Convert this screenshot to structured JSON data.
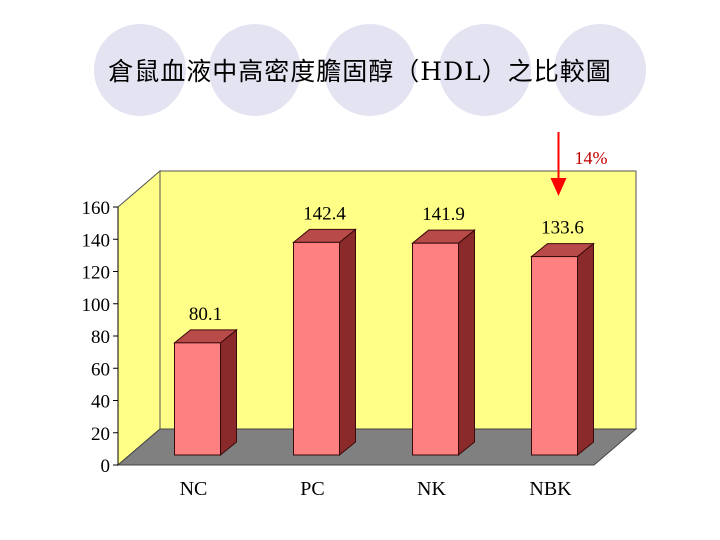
{
  "slide": {
    "title": "倉鼠血液中高密度膽固醇（HDL）之比較圖"
  },
  "colors": {
    "back_wall": "#ffff88",
    "floor": "#808080",
    "bar_front": "#ff8080",
    "bar_side": "#8b2a2a",
    "bar_top": "#b84a4a",
    "decor_circle": "#e3e3f2",
    "arrow": "#ff0000"
  },
  "chart_data": {
    "type": "bar",
    "title": "",
    "xlabel": "",
    "ylabel": "",
    "categories": [
      "NC",
      "PC",
      "NK",
      "NBK"
    ],
    "values": [
      80.1,
      142.4,
      141.9,
      133.6
    ],
    "data_labels": [
      "80.1",
      "142.4",
      "141.9",
      "133.6"
    ],
    "ylim": [
      0,
      160
    ],
    "yticks": [
      0,
      20,
      40,
      60,
      80,
      100,
      120,
      140,
      160
    ],
    "style": "3d-column",
    "grid": false,
    "legend": "none",
    "annotation": {
      "text": "14%",
      "target_category": "NBK",
      "shape": "down-arrow"
    }
  }
}
